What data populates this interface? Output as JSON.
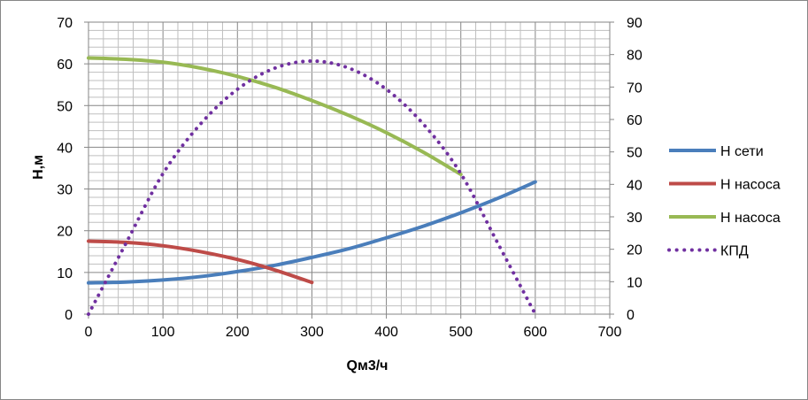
{
  "chart_data": {
    "type": "line",
    "xlabel": "Qм3/ч",
    "ylabel": "Н,м",
    "xlim": [
      0,
      700
    ],
    "ylim": [
      0,
      70
    ],
    "y2lim": [
      0,
      90
    ],
    "x_ticks": [
      "0",
      "100",
      "200",
      "300",
      "400",
      "500",
      "600",
      "700"
    ],
    "y_ticks": [
      "0",
      "10",
      "20",
      "30",
      "40",
      "50",
      "60",
      "70"
    ],
    "y2_ticks": [
      "0",
      "10",
      "20",
      "30",
      "40",
      "50",
      "60",
      "70",
      "80",
      "90"
    ],
    "grid": true,
    "legend_position": "right",
    "series": [
      {
        "name": "Н сети",
        "axis": "left",
        "color": "#4a7ebb",
        "style": "solid",
        "x": [
          0,
          50,
          100,
          150,
          200,
          250,
          300,
          350,
          400,
          450,
          500,
          550,
          600
        ],
        "y": [
          7.5,
          7.7,
          8.2,
          9.0,
          10.2,
          11.7,
          13.6,
          15.7,
          18.3,
          21.1,
          24.3,
          27.8,
          31.7
        ]
      },
      {
        "name": "Н насоса",
        "axis": "left",
        "color": "#be4b48",
        "style": "solid",
        "x": [
          0,
          50,
          100,
          150,
          200,
          250,
          300
        ],
        "y": [
          17.5,
          17.2,
          16.4,
          15.0,
          13.1,
          10.6,
          7.6
        ]
      },
      {
        "name": "Н насоса",
        "axis": "left",
        "color": "#98b954",
        "style": "solid",
        "x": [
          0,
          50,
          100,
          150,
          200,
          250,
          300,
          350,
          400,
          450,
          500
        ],
        "y": [
          61.4,
          61.1,
          60.4,
          59.0,
          57.0,
          54.4,
          51.2,
          47.6,
          43.5,
          38.8,
          33.5
        ]
      },
      {
        "name": "КПД",
        "axis": "right",
        "color": "#7030a0",
        "style": "dotted",
        "x": [
          0,
          50,
          100,
          150,
          200,
          250,
          300,
          350,
          400,
          450,
          500,
          550,
          600
        ],
        "y": [
          0,
          21.7,
          43.3,
          58.5,
          69.3,
          75.8,
          78,
          75.8,
          69.3,
          58.5,
          43.3,
          21.7,
          0
        ]
      }
    ]
  }
}
